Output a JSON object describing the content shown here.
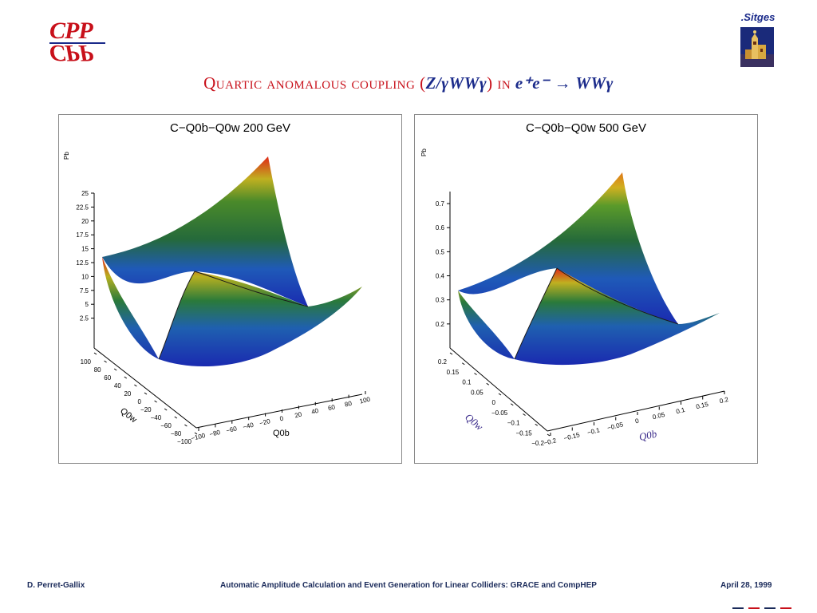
{
  "logos": {
    "cpp_text": "CPP",
    "sitges_text": ".Sitges"
  },
  "title": {
    "text_a": "Quartic anomalous coupling (",
    "text_b": "Z/γWWγ",
    "text_c": ") in ",
    "text_d": "e⁺e⁻ → WWγ"
  },
  "footer": {
    "author": "D. Perret-Gallix",
    "talk": "Automatic Amplitude Calculation and Event Generation for Linear Colliders: GRACE and CompHEP",
    "date": "April 28, 1999"
  },
  "colors": {
    "title_red": "#c8101a",
    "title_blue": "#1a2a8a",
    "surface_low": "#1c33b4",
    "surface_mid": "#2a7a2a",
    "surface_high": "#e0301a"
  },
  "chart_data": [
    {
      "type": "surface",
      "title": "C−Q0b−Q0w 200 GeV",
      "zlabel": "Pb",
      "xlabel": "Q0b",
      "ylabel": "Q0w",
      "x_ticks": [
        "−100",
        "−80",
        "−60",
        "−40",
        "−20",
        "0",
        "20",
        "40",
        "60",
        "80",
        "100"
      ],
      "y_ticks": [
        "100",
        "80",
        "60",
        "40",
        "20",
        "0",
        "−20",
        "−40",
        "−60",
        "−80",
        "−100"
      ],
      "z_ticks": [
        "2.5",
        "5",
        "7.5",
        "10",
        "12.5",
        "15",
        "17.5",
        "20",
        "22.5",
        "25"
      ],
      "xlim": [
        -100,
        100
      ],
      "ylim": [
        -100,
        100
      ],
      "zlim": [
        0,
        25
      ],
      "z_min_approx": 0.5,
      "z_max_approx": 25
    },
    {
      "type": "surface",
      "title": "C−Q0b−Q0w 500 GeV",
      "zlabel": "Pb",
      "xlabel": "Q0b",
      "ylabel": "Q0w",
      "x_ticks": [
        "−0.2",
        "−0.15",
        "−0.1",
        "−0.05",
        "0",
        "0.05",
        "0.1",
        "0.15",
        "0.2"
      ],
      "y_ticks": [
        "0.2",
        "0.15",
        "0.1",
        "0.05",
        "0",
        "−0.05",
        "−0.1",
        "−0.15",
        "−0.2"
      ],
      "z_ticks": [
        "0.2",
        "0.3",
        "0.4",
        "0.5",
        "0.6",
        "0.7"
      ],
      "xlim": [
        -0.2,
        0.2
      ],
      "ylim": [
        -0.2,
        0.2
      ],
      "zlim": [
        0.1,
        0.75
      ],
      "z_min_approx": 0.12,
      "z_max_approx": 0.75
    }
  ]
}
